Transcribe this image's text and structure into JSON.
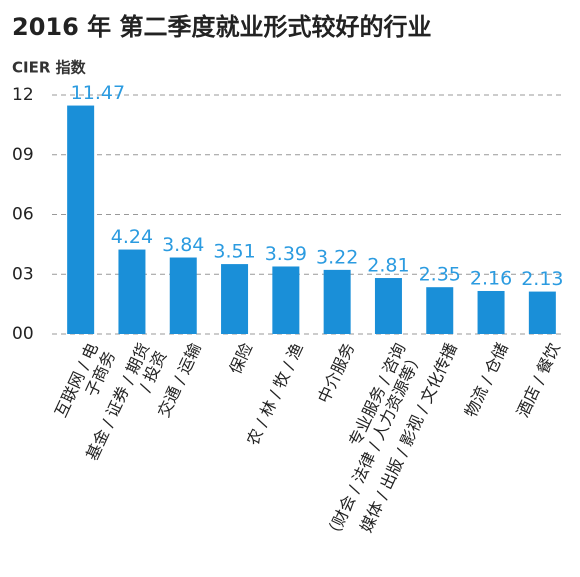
{
  "chart_data": {
    "type": "bar",
    "title": "2016 年 第二季度就业形式较好的行业",
    "y_label": "CIER 指数",
    "categories": [
      "互联网 / 电子商务",
      "基金 / 证券 / 期货 / 投资",
      "交通 / 运输",
      "保险",
      "农 / 林 / 牧 / 渔",
      "中介服务",
      "专业服务 / 咨询\n（财会 / 法律 / 人力资源等）",
      "媒体 / 出版 / 影视 / 文化传播",
      "物流 / 仓储",
      "酒店 / 餐饮"
    ],
    "values": [
      11.47,
      4.24,
      3.84,
      3.51,
      3.39,
      3.22,
      2.81,
      2.35,
      2.16,
      2.13
    ],
    "color": "#1a8fd8",
    "label_color": "#2b9be0",
    "ylim": [
      0,
      12
    ],
    "yticks": [
      {
        "value": 0,
        "label": "00"
      },
      {
        "value": 3,
        "label": "03"
      },
      {
        "value": 6,
        "label": "06"
      },
      {
        "value": 9,
        "label": "09"
      },
      12
    ],
    "grid": true
  }
}
